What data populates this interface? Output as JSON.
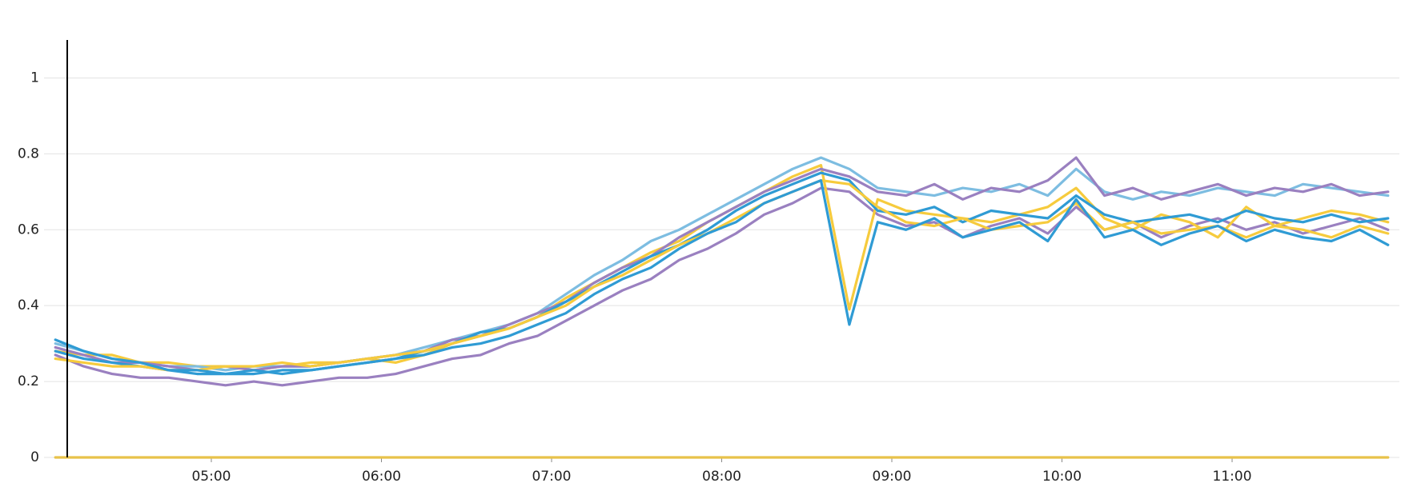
{
  "chart_data": {
    "type": "line",
    "x": [
      "04:05",
      "04:15",
      "04:25",
      "04:35",
      "04:45",
      "04:55",
      "05:05",
      "05:15",
      "05:25",
      "05:35",
      "05:45",
      "05:55",
      "06:05",
      "06:15",
      "06:25",
      "06:35",
      "06:45",
      "06:55",
      "07:05",
      "07:15",
      "07:25",
      "07:35",
      "07:45",
      "07:55",
      "08:05",
      "08:15",
      "08:25",
      "08:35",
      "08:45",
      "08:55",
      "09:05",
      "09:15",
      "09:25",
      "09:35",
      "09:45",
      "09:55",
      "10:05",
      "10:15",
      "10:25",
      "10:35",
      "10:45",
      "10:55",
      "11:05",
      "11:15",
      "11:25",
      "11:35",
      "11:45",
      "11:55"
    ],
    "xlim": [
      "04:01",
      "11:59"
    ],
    "xticks": [
      "05:00",
      "06:00",
      "07:00",
      "08:00",
      "09:00",
      "10:00",
      "11:00"
    ],
    "ylim": [
      0,
      1.1
    ],
    "yticks": [
      0,
      0.2,
      0.4,
      0.6,
      0.8,
      1
    ],
    "grid": true,
    "series": [
      {
        "color": "#9a80c0",
        "values": [
          0.27,
          0.24,
          0.22,
          0.21,
          0.21,
          0.2,
          0.19,
          0.2,
          0.19,
          0.2,
          0.21,
          0.21,
          0.22,
          0.24,
          0.26,
          0.27,
          0.3,
          0.32,
          0.36,
          0.4,
          0.44,
          0.47,
          0.52,
          0.55,
          0.59,
          0.64,
          0.67,
          0.71,
          0.7,
          0.64,
          0.61,
          0.62,
          0.58,
          0.61,
          0.63,
          0.59,
          0.66,
          0.6,
          0.62,
          0.58,
          0.61,
          0.63,
          0.6,
          0.62,
          0.59,
          0.61,
          0.63,
          0.6
        ]
      },
      {
        "color": "#f6cb3d",
        "values": [
          0.28,
          0.27,
          0.27,
          0.25,
          0.25,
          0.24,
          0.24,
          0.23,
          0.24,
          0.25,
          0.25,
          0.26,
          0.25,
          0.27,
          0.3,
          0.32,
          0.34,
          0.37,
          0.42,
          0.46,
          0.5,
          0.54,
          0.57,
          0.62,
          0.66,
          0.7,
          0.74,
          0.77,
          0.39,
          0.68,
          0.65,
          0.64,
          0.63,
          0.62,
          0.64,
          0.66,
          0.71,
          0.63,
          0.6,
          0.64,
          0.62,
          0.58,
          0.66,
          0.61,
          0.63,
          0.65,
          0.64,
          0.62
        ]
      },
      {
        "color": "#7dbde1",
        "values": [
          0.3,
          0.28,
          0.26,
          0.25,
          0.24,
          0.24,
          0.23,
          0.24,
          0.24,
          0.24,
          0.25,
          0.26,
          0.27,
          0.29,
          0.31,
          0.33,
          0.35,
          0.38,
          0.43,
          0.48,
          0.52,
          0.57,
          0.6,
          0.64,
          0.68,
          0.72,
          0.76,
          0.79,
          0.76,
          0.71,
          0.7,
          0.69,
          0.71,
          0.7,
          0.72,
          0.69,
          0.76,
          0.7,
          0.68,
          0.7,
          0.69,
          0.71,
          0.7,
          0.69,
          0.72,
          0.71,
          0.7,
          0.69
        ]
      },
      {
        "color": "#9a80c0",
        "values": [
          0.29,
          0.27,
          0.25,
          0.25,
          0.24,
          0.23,
          0.24,
          0.23,
          0.24,
          0.24,
          0.25,
          0.26,
          0.27,
          0.28,
          0.31,
          0.32,
          0.35,
          0.38,
          0.41,
          0.46,
          0.5,
          0.53,
          0.58,
          0.62,
          0.66,
          0.7,
          0.73,
          0.76,
          0.74,
          0.7,
          0.69,
          0.72,
          0.68,
          0.71,
          0.7,
          0.73,
          0.79,
          0.69,
          0.71,
          0.68,
          0.7,
          0.72,
          0.69,
          0.71,
          0.7,
          0.72,
          0.69,
          0.7
        ]
      },
      {
        "color": "#2f9bd4",
        "values": [
          0.28,
          0.26,
          0.25,
          0.24,
          0.23,
          0.22,
          0.22,
          0.22,
          0.23,
          0.23,
          0.24,
          0.25,
          0.26,
          0.28,
          0.3,
          0.33,
          0.34,
          0.37,
          0.41,
          0.45,
          0.49,
          0.53,
          0.56,
          0.6,
          0.65,
          0.69,
          0.72,
          0.75,
          0.73,
          0.65,
          0.64,
          0.66,
          0.62,
          0.65,
          0.64,
          0.63,
          0.69,
          0.64,
          0.62,
          0.63,
          0.64,
          0.62,
          0.65,
          0.63,
          0.62,
          0.64,
          0.62,
          0.63
        ]
      },
      {
        "color": "#f6cb3d",
        "values": [
          0.26,
          0.25,
          0.24,
          0.24,
          0.23,
          0.23,
          0.24,
          0.24,
          0.25,
          0.24,
          0.25,
          0.26,
          0.27,
          0.28,
          0.3,
          0.32,
          0.34,
          0.37,
          0.4,
          0.45,
          0.48,
          0.52,
          0.56,
          0.59,
          0.63,
          0.67,
          0.7,
          0.73,
          0.72,
          0.66,
          0.62,
          0.61,
          0.63,
          0.6,
          0.61,
          0.62,
          0.67,
          0.6,
          0.62,
          0.59,
          0.6,
          0.61,
          0.58,
          0.61,
          0.6,
          0.58,
          0.61,
          0.59
        ]
      },
      {
        "color": "#2f9bd4",
        "values": [
          0.31,
          0.28,
          0.26,
          0.25,
          0.23,
          0.23,
          0.22,
          0.23,
          0.22,
          0.23,
          0.24,
          0.25,
          0.26,
          0.27,
          0.29,
          0.3,
          0.32,
          0.35,
          0.38,
          0.43,
          0.47,
          0.5,
          0.55,
          0.59,
          0.62,
          0.67,
          0.7,
          0.73,
          0.35,
          0.62,
          0.6,
          0.63,
          0.58,
          0.6,
          0.62,
          0.57,
          0.68,
          0.58,
          0.6,
          0.56,
          0.59,
          0.61,
          0.57,
          0.6,
          0.58,
          0.57,
          0.6,
          0.56
        ]
      },
      {
        "color": "#e8c24a",
        "values": [
          0,
          0,
          0,
          0,
          0,
          0,
          0,
          0,
          0,
          0,
          0,
          0,
          0,
          0,
          0,
          0,
          0,
          0,
          0,
          0,
          0,
          0,
          0,
          0,
          0,
          0,
          0,
          0,
          0,
          0,
          0,
          0,
          0,
          0,
          0,
          0,
          0,
          0,
          0,
          0,
          0,
          0,
          0,
          0,
          0,
          0,
          0,
          0
        ]
      }
    ]
  }
}
